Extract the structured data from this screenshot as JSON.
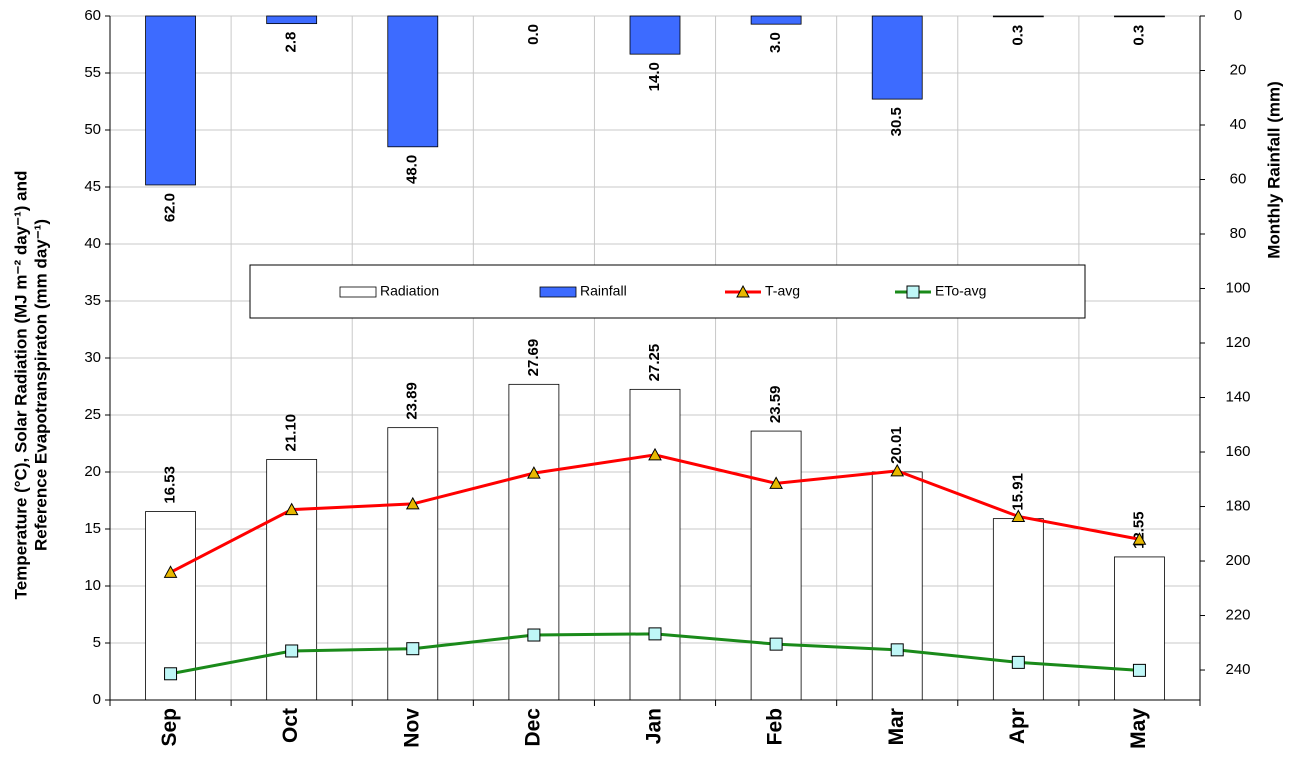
{
  "chart_data": {
    "type": "combo",
    "categories": [
      "Sep",
      "Oct",
      "Nov",
      "Dec",
      "Jan",
      "Feb",
      "Mar",
      "Apr",
      "May"
    ],
    "ylabel": [
      "Temperature (°C), Solar Radiation (MJ m⁻² day⁻¹) and",
      "Reference Evapotranspiraton (mm day⁻¹)"
    ],
    "y2label": "Monthly Rainfall (mm)",
    "ylim": [
      0,
      60
    ],
    "yticks": [
      0,
      5,
      10,
      15,
      20,
      25,
      30,
      35,
      40,
      45,
      50,
      55,
      60
    ],
    "y2lim": [
      0,
      251
    ],
    "y2ticks": [
      0,
      20,
      40,
      60,
      80,
      100,
      120,
      140,
      160,
      180,
      200,
      220,
      240
    ],
    "y2_inverted": true,
    "grid": true,
    "legend": "center",
    "series": [
      {
        "name": "Radiation",
        "kind": "bar",
        "color": "#ffffff",
        "values": [
          16.53,
          21.1,
          23.89,
          27.69,
          27.25,
          23.59,
          20.01,
          15.91,
          12.55
        ],
        "value_labels": [
          "16.53",
          "21.10",
          "23.89",
          "27.69",
          "27.25",
          "23.59",
          "20.01",
          "15.91",
          "12.55"
        ]
      },
      {
        "name": "Rainfall",
        "kind": "bar",
        "axis": "y2",
        "color": "#3d6bff",
        "values": [
          62.0,
          2.8,
          48.0,
          0.0,
          14.0,
          3.0,
          30.5,
          0.3,
          0.3
        ],
        "value_labels": [
          "62.0",
          "2.8",
          "48.0",
          "0.0",
          "14.0",
          "3.0",
          "30.5",
          "0.3",
          "0.3"
        ]
      },
      {
        "name": "T-avg",
        "kind": "line",
        "marker": "triangle",
        "color": "#ff0000",
        "marker_color": "#e8b800",
        "values": [
          11.2,
          16.7,
          17.2,
          19.9,
          21.5,
          19.0,
          20.1,
          16.1,
          14.1
        ]
      },
      {
        "name": "ETo-avg",
        "kind": "line",
        "marker": "square",
        "color": "#1a8a1a",
        "marker_color": "#bff7f7",
        "values": [
          2.3,
          4.3,
          4.5,
          5.7,
          5.8,
          4.9,
          4.4,
          3.3,
          2.6
        ]
      }
    ]
  }
}
